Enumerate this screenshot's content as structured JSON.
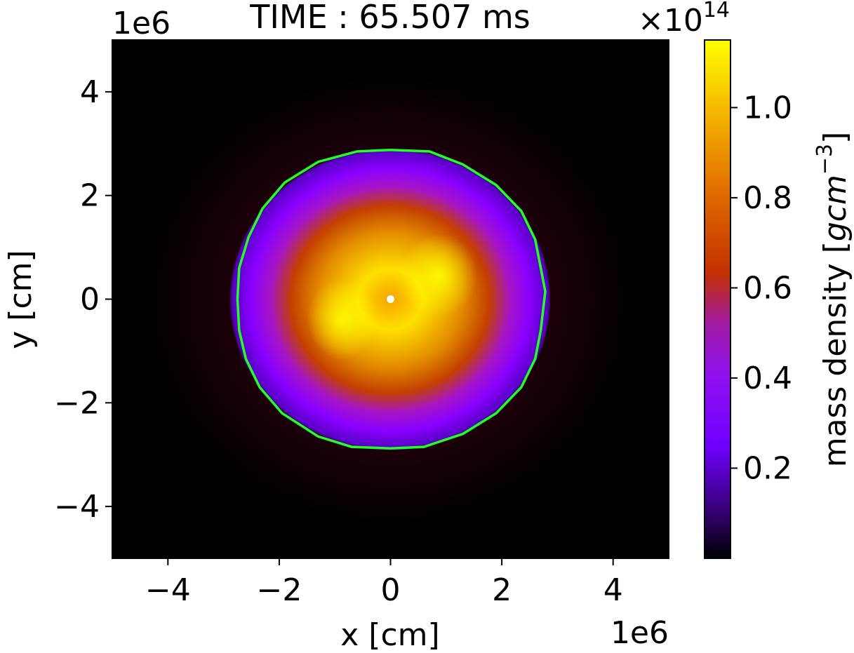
{
  "chart_data": {
    "type": "heatmap",
    "title": "TIME : 65.507 ms",
    "xlabel": "x [cm]",
    "ylabel": "y [cm]",
    "xlim": [
      -5,
      5
    ],
    "ylim": [
      -5,
      5
    ],
    "x_scale_label": "1e6",
    "y_scale_label": "1e6",
    "x_ticks": [
      -4,
      -2,
      0,
      2,
      4
    ],
    "y_ticks": [
      -4,
      -2,
      0,
      2,
      4
    ],
    "x_tick_labels": [
      "−4",
      "−2",
      "0",
      "2",
      "4"
    ],
    "y_tick_labels": [
      "−4",
      "−2",
      "0",
      "2",
      "4"
    ],
    "colorbar": {
      "label_prefix": "mass density [",
      "label_units": "gcm",
      "label_exp": "−3",
      "label_suffix": "]",
      "scale_prefix": "×10",
      "scale_exp": "14",
      "range": [
        0.0,
        1.15
      ],
      "ticks": [
        0.2,
        0.4,
        0.6,
        0.8,
        1.0
      ],
      "tick_labels": [
        "0.2",
        "0.4",
        "0.6",
        "0.8",
        "1.0"
      ],
      "colormap": "gnuplot"
    },
    "grid": false,
    "contour": {
      "color": "#22ff22",
      "points": [
        [
          -2.75,
          0
        ],
        [
          -2.72,
          0.6
        ],
        [
          -2.55,
          1.2
        ],
        [
          -2.3,
          1.75
        ],
        [
          -1.9,
          2.25
        ],
        [
          -1.3,
          2.65
        ],
        [
          -0.6,
          2.85
        ],
        [
          0.0,
          2.88
        ],
        [
          0.7,
          2.85
        ],
        [
          1.3,
          2.6
        ],
        [
          1.9,
          2.2
        ],
        [
          2.35,
          1.7
        ],
        [
          2.6,
          1.15
        ],
        [
          2.7,
          0.6
        ],
        [
          2.78,
          0.15
        ],
        [
          2.7,
          -0.6
        ],
        [
          2.6,
          -1.15
        ],
        [
          2.35,
          -1.7
        ],
        [
          1.9,
          -2.2
        ],
        [
          1.3,
          -2.6
        ],
        [
          0.6,
          -2.85
        ],
        [
          0.0,
          -2.88
        ],
        [
          -0.7,
          -2.85
        ],
        [
          -1.3,
          -2.65
        ],
        [
          -1.95,
          -2.2
        ],
        [
          -2.35,
          -1.7
        ],
        [
          -2.6,
          -1.15
        ],
        [
          -2.72,
          -0.6
        ]
      ]
    },
    "center_marker": {
      "x": 0,
      "y": 0,
      "color": "#ffffff"
    }
  }
}
